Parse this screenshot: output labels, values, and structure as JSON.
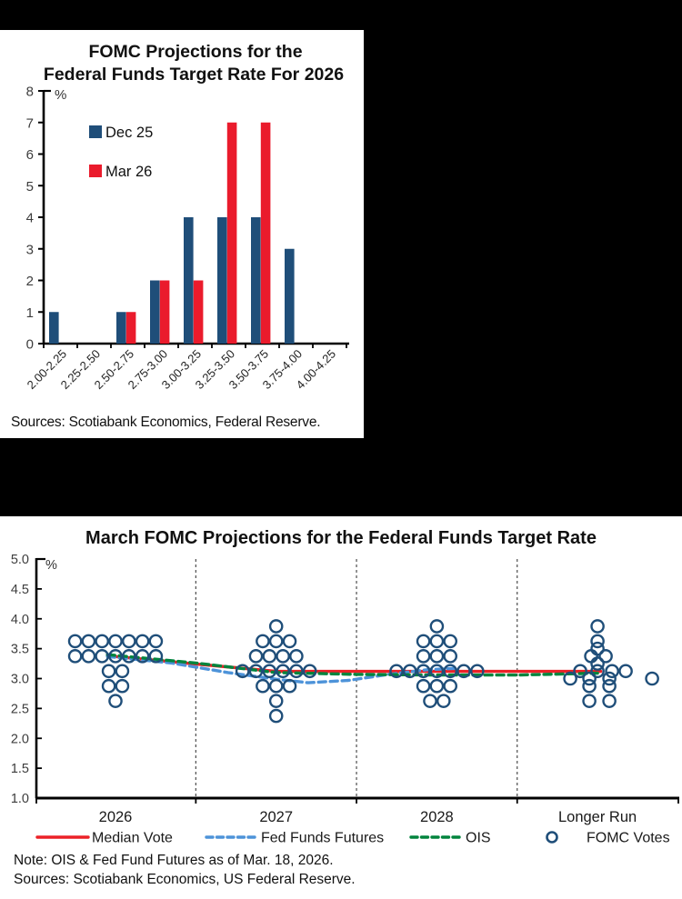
{
  "page": {
    "background_color": "#000000",
    "panel_color": "#ffffff"
  },
  "chart_data": [
    {
      "type": "bar",
      "title": "FOMC Projections for the Federal Funds Target Rate For 2026",
      "title_lines": [
        "FOMC Projections for the",
        "Federal Funds Target Rate For 2026"
      ],
      "ylabel": "%",
      "ylim": [
        0,
        8
      ],
      "ytick_step": 1,
      "grid": false,
      "legend_position": "inside-top-left",
      "categories": [
        "2.00-2.25",
        "2.25-2.50",
        "2.50-2.75",
        "2.75-3.00",
        "3.00-3.25",
        "3.25-3.50",
        "3.50-3.75",
        "3.75-4.00",
        "4.00-4.25"
      ],
      "series": [
        {
          "name": "Dec 25",
          "color": "#1F4E79",
          "values": [
            1,
            0,
            1,
            2,
            4,
            4,
            4,
            3,
            0
          ]
        },
        {
          "name": "Mar 26",
          "color": "#EA1B2C",
          "values": [
            0,
            0,
            1,
            2,
            2,
            7,
            7,
            0,
            0
          ]
        }
      ],
      "source": "Sources: Scotiabank Economics, Federal Reserve."
    },
    {
      "type": "scatter",
      "title": "March FOMC Projections for the Federal Funds Target Rate",
      "ylabel": "%",
      "ylim": [
        1.0,
        5.0
      ],
      "ytick_step": 0.5,
      "grid": false,
      "legend_position": "bottom",
      "categories": [
        "2026",
        "2027",
        "2028",
        "Longer Run"
      ],
      "votes_color": "#1F4E79",
      "votes_label": "FOMC Votes",
      "votes": [
        [
          {
            "v": 3.625,
            "n": 7
          },
          {
            "v": 3.375,
            "n": 7
          },
          {
            "v": 3.125,
            "n": 2
          },
          {
            "v": 2.875,
            "n": 2
          },
          {
            "v": 2.625,
            "n": 1
          }
        ],
        [
          {
            "v": 3.875,
            "n": 1
          },
          {
            "v": 3.625,
            "n": 3
          },
          {
            "v": 3.375,
            "n": 4
          },
          {
            "v": 3.125,
            "n": 6
          },
          {
            "v": 2.875,
            "n": 3
          },
          {
            "v": 2.625,
            "n": 1
          },
          {
            "v": 2.375,
            "n": 1
          }
        ],
        [
          {
            "v": 3.875,
            "n": 1
          },
          {
            "v": 3.625,
            "n": 3
          },
          {
            "v": 3.375,
            "n": 3
          },
          {
            "v": 3.125,
            "n": 7
          },
          {
            "v": 2.875,
            "n": 3
          },
          {
            "v": 2.625,
            "n": 2
          }
        ],
        [
          {
            "v": 3.875,
            "dx": [
              0
            ]
          },
          {
            "v": 3.625,
            "dx": [
              0
            ]
          },
          {
            "v": 3.5,
            "dx": [
              0
            ]
          },
          {
            "v": 3.375,
            "dx": [
              -7,
              9
            ]
          },
          {
            "v": 3.25,
            "dx": [
              0
            ]
          },
          {
            "v": 3.125,
            "dx": [
              -19,
              0,
              16,
              31
            ]
          },
          {
            "v": 3.0,
            "dx": [
              -30,
              -9,
              13,
              60
            ]
          },
          {
            "v": 2.875,
            "dx": [
              -9,
              13
            ]
          },
          {
            "v": 2.625,
            "dx": [
              -9,
              13
            ]
          }
        ]
      ],
      "lines": [
        {
          "name": "Median Vote",
          "color": "#EC2127",
          "style": "solid",
          "points": [
            [
              -0.05,
              3.38
            ],
            [
              1,
              3.12
            ],
            [
              2,
              3.12
            ],
            [
              3.02,
              3.12
            ]
          ]
        },
        {
          "name": "Fed Funds Futures",
          "color": "#4D93D9",
          "style": "dashed",
          "points": [
            [
              -0.05,
              3.37
            ],
            [
              0.35,
              3.26
            ],
            [
              0.7,
              3.1
            ],
            [
              1.0,
              2.99
            ],
            [
              1.2,
              2.93
            ],
            [
              1.45,
              2.97
            ],
            [
              1.7,
              3.07
            ],
            [
              1.95,
              3.15
            ],
            [
              2.12,
              3.17
            ]
          ]
        },
        {
          "name": "OIS",
          "color": "#00843D",
          "style": "dashed",
          "points": [
            [
              -0.05,
              3.4
            ],
            [
              0.5,
              3.26
            ],
            [
              1,
              3.1
            ],
            [
              1.5,
              3.07
            ],
            [
              2,
              3.06
            ],
            [
              2.5,
              3.06
            ],
            [
              3.0,
              3.09
            ]
          ]
        }
      ],
      "note": "Note: OIS & Fed Fund Futures as of Mar. 18, 2026.",
      "source": "Sources: Scotiabank Economics, US Federal Reserve."
    }
  ]
}
